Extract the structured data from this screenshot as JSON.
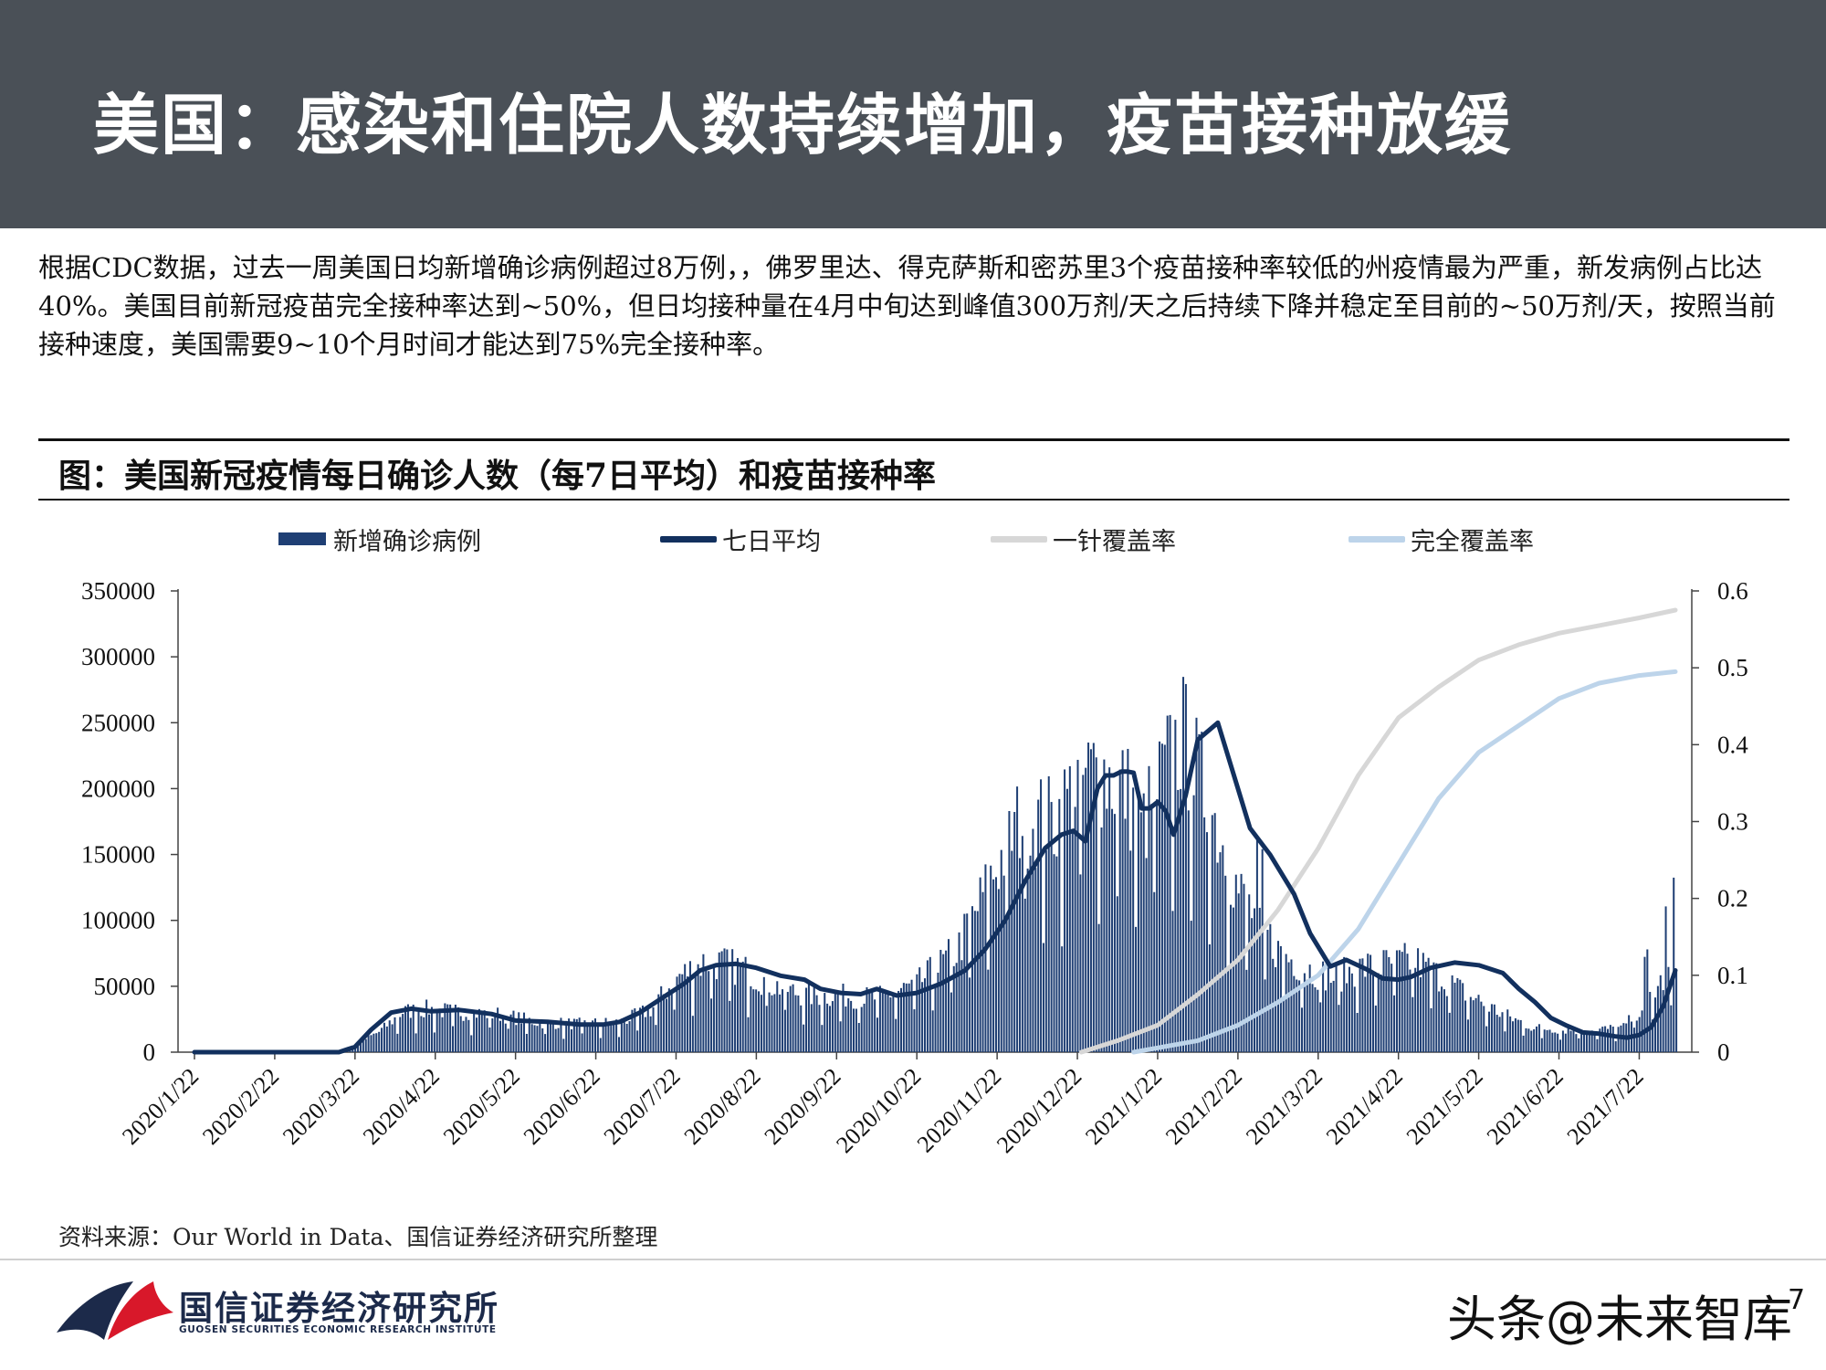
{
  "header": {
    "title": "美国：感染和住院人数持续增加，疫苗接种放缓"
  },
  "intro": {
    "text": "根据CDC数据，过去一周美国日均新增确诊病例超过8万例，，佛罗里达、得克萨斯和密苏里3个疫苗接种率较低的州疫情最为严重，新发病例占比达40%。美国目前新冠疫苗完全接种率达到~50%，但日均接种量在4月中旬达到峰值300万剂/天之后持续下降并稳定至目前的~50万剂/天，按照当前接种速度，美国需要9~10个月时间才能达到75%完全接种率。"
  },
  "chart_title": "图：美国新冠疫情每日确诊人数（每7日平均）和疫苗接种率",
  "legend": {
    "bars": "新增确诊病例",
    "avg7": "七日平均",
    "first_dose": "一针覆盖率",
    "full": "完全覆盖率"
  },
  "colors": {
    "bars": "#1f3f74",
    "avg7": "#12305e",
    "first_dose": "#d7d7d7",
    "full": "#bdd4ea",
    "header_bg": "#4a5057",
    "logo_red": "#d8182a",
    "logo_navy": "#1c2a4a"
  },
  "chart_data": {
    "type": "bar+line",
    "x_labels": [
      "2020/1/22",
      "2020/2/22",
      "2020/3/22",
      "2020/4/22",
      "2020/5/22",
      "2020/6/22",
      "2020/7/22",
      "2020/8/22",
      "2020/9/22",
      "2020/10/22",
      "2020/11/22",
      "2020/12/22",
      "2021/1/22",
      "2021/2/22",
      "2021/3/22",
      "2021/4/22",
      "2021/5/22",
      "2021/6/22",
      "2021/7/22"
    ],
    "y_left": {
      "min": 0,
      "max": 350000,
      "ticks": [
        "350000",
        "300000",
        "250000",
        "200000",
        "150000",
        "100000",
        "50000",
        "0"
      ]
    },
    "y_right": {
      "min": 0,
      "max": 0.6,
      "ticks": [
        "0.6",
        "0.5",
        "0.4",
        "0.3",
        "0.2",
        "0.1",
        "0"
      ]
    },
    "daily_cases_anchors": {
      "month_index": [
        0,
        1.2,
        1.85,
        2.3,
        2.6,
        2.9,
        3.2,
        3.8,
        4.3,
        4.8,
        5.3,
        5.7,
        6.0,
        6.4,
        6.8,
        7.2,
        7.6,
        8.0,
        8.5,
        9.0,
        9.5,
        9.9,
        10.3,
        10.7,
        10.95,
        11.25,
        11.6,
        11.8,
        12.0,
        12.3,
        12.7,
        13.0,
        13.5,
        13.85,
        14.2,
        14.5,
        15.2,
        15.8,
        16.3,
        16.7,
        17.3,
        17.8,
        18.1,
        18.45
      ],
      "cases": [
        0,
        0,
        1000,
        15000,
        30000,
        32000,
        30000,
        28000,
        22000,
        21000,
        22000,
        32000,
        55000,
        68000,
        62000,
        50000,
        42000,
        42000,
        40000,
        50000,
        75000,
        125000,
        175000,
        170000,
        195000,
        210000,
        195000,
        165000,
        195000,
        235000,
        175000,
        120000,
        75000,
        62000,
        55000,
        62000,
        68000,
        45000,
        28000,
        18000,
        16000,
        18000,
        38000,
        65000
      ]
    },
    "seven_day_avg": {
      "month_index": [
        0,
        1.2,
        1.8,
        2.0,
        2.2,
        2.45,
        2.7,
        2.95,
        3.3,
        3.7,
        4.0,
        4.4,
        4.8,
        5.1,
        5.3,
        5.55,
        5.85,
        6.1,
        6.3,
        6.5,
        6.75,
        7.0,
        7.3,
        7.6,
        7.8,
        8.05,
        8.3,
        8.5,
        8.75,
        9.0,
        9.3,
        9.6,
        9.85,
        10.1,
        10.35,
        10.6,
        10.8,
        10.95,
        11.1,
        11.25,
        11.35,
        11.45,
        11.55,
        11.62,
        11.7,
        11.8,
        11.9,
        12.0,
        12.1,
        12.2,
        12.35,
        12.5,
        12.75,
        13.0,
        13.15,
        13.4,
        13.7,
        13.9,
        14.15,
        14.35,
        14.6,
        14.8,
        15.0,
        15.15,
        15.4,
        15.7,
        16.0,
        16.3,
        16.5,
        16.7,
        16.9,
        17.1,
        17.3,
        17.5,
        17.7,
        17.85,
        18.0,
        18.15,
        18.3,
        18.45
      ],
      "values": [
        0,
        0,
        0,
        4000,
        17000,
        30000,
        33000,
        31000,
        32000,
        29000,
        24000,
        23000,
        21000,
        21000,
        23000,
        30000,
        42000,
        52000,
        62000,
        66000,
        67000,
        64000,
        58000,
        55000,
        48000,
        45000,
        44000,
        48000,
        43000,
        45000,
        52000,
        62000,
        78000,
        100000,
        130000,
        155000,
        165000,
        168000,
        160000,
        200000,
        210000,
        210000,
        213000,
        213000,
        212000,
        185000,
        185000,
        190000,
        183000,
        165000,
        195000,
        237000,
        250000,
        200000,
        170000,
        150000,
        120000,
        90000,
        65000,
        70000,
        63000,
        56000,
        55000,
        57000,
        64000,
        68000,
        66000,
        60000,
        48000,
        38000,
        26000,
        20000,
        15000,
        14000,
        12000,
        11000,
        13000,
        19000,
        35000,
        62000
      ]
    },
    "first_dose_rate": {
      "month_index": [
        11.05,
        11.5,
        12.0,
        12.5,
        13.0,
        13.5,
        14.0,
        14.5,
        15.0,
        15.5,
        16.0,
        16.5,
        17.0,
        17.5,
        18.0,
        18.45
      ],
      "values": [
        0,
        0.015,
        0.035,
        0.075,
        0.12,
        0.185,
        0.265,
        0.36,
        0.435,
        0.475,
        0.51,
        0.53,
        0.545,
        0.555,
        0.565,
        0.575
      ]
    },
    "full_rate": {
      "month_index": [
        11.7,
        12.5,
        13.0,
        13.5,
        14.0,
        14.5,
        15.0,
        15.5,
        16.0,
        16.5,
        17.0,
        17.5,
        18.0,
        18.45
      ],
      "values": [
        0,
        0.015,
        0.035,
        0.065,
        0.1,
        0.16,
        0.245,
        0.33,
        0.39,
        0.425,
        0.46,
        0.48,
        0.49,
        0.495
      ]
    }
  },
  "source": "资料来源：Our World in Data、国信证券经济研究所整理",
  "footer": {
    "logo_cn": "国信证券经济研究所",
    "logo_en": "GUOSEN SECURITIES ECONOMIC RESEARCH INSTITUTE",
    "watermark": "头条@未来智库",
    "page_number": "7"
  }
}
